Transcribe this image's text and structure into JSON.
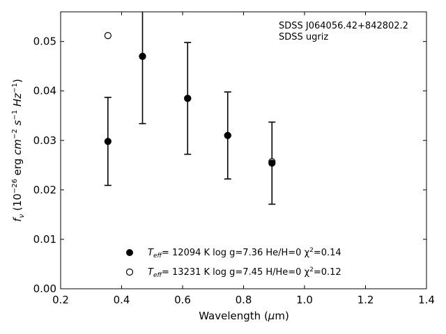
{
  "chart_data": {
    "type": "scatter",
    "title": "",
    "xlabel": "Wavelength (μm)",
    "ylabel": "f_ν (10^−26 erg cm^−2 s^−1 Hz^−1)",
    "xlim": [
      0.2,
      1.4
    ],
    "ylim": [
      0.0,
      0.056
    ],
    "xticks": [
      0.2,
      0.4,
      0.6,
      0.8,
      1.0,
      1.2,
      1.4
    ],
    "xtick_labels": [
      "0.2",
      "0.4",
      "0.6",
      "0.8",
      "1.0",
      "1.2",
      "1.4"
    ],
    "yticks": [
      0.0,
      0.01,
      0.02,
      0.03,
      0.04,
      0.05
    ],
    "ytick_labels": [
      "0.00",
      "0.01",
      "0.02",
      "0.03",
      "0.04",
      "0.05"
    ],
    "grid": false,
    "annotations": [
      "SDSS J064056.42+842802.2",
      "SDSS ugriz"
    ],
    "observed": {
      "x": [
        0.3551,
        0.4686,
        0.6166,
        0.748,
        0.8932
      ],
      "y": [
        0.0298,
        0.047,
        0.0385,
        0.031,
        0.0254
      ],
      "yerr": [
        0.0089,
        0.0136,
        0.0113,
        0.0088,
        0.0083
      ],
      "marker": "errorbar"
    },
    "series": [
      {
        "name": "Teff= 12094 K  log g=7.36  He/H=0  χ²=0.14",
        "name_parts": [
          "T",
          "eff",
          "= 12094 K  log g=7.36  He/H=0  χ",
          "2",
          "=0.14"
        ],
        "marker": "filled-circle",
        "x": [
          0.3551,
          0.4686,
          0.6166,
          0.748,
          0.8932
        ],
        "y": [
          0.0298,
          0.047,
          0.0385,
          0.031,
          0.0254
        ]
      },
      {
        "name": "Teff= 13231 K  log g=7.45  H/He=0  χ²=0.12",
        "name_parts": [
          "T",
          "eff",
          "= 13231 K  log g=7.45  H/He=0  χ",
          "2",
          "=0.12"
        ],
        "marker": "open-circle",
        "x": [
          0.3551,
          0.4686,
          0.6166,
          0.748,
          0.8932
        ],
        "y": [
          0.0512,
          0.047,
          0.0385,
          0.031,
          0.0257
        ]
      }
    ],
    "legend_position": "bottom-center"
  },
  "colors": {
    "axes": "#000000",
    "marker": "#000000",
    "background": "#ffffff"
  }
}
